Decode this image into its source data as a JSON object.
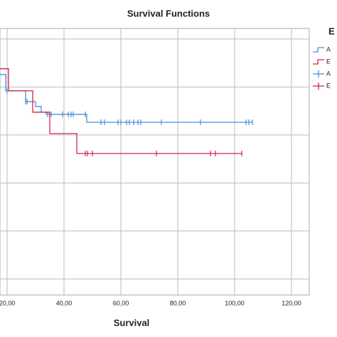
{
  "chart_data": {
    "type": "survival-step",
    "title": "Survival Functions",
    "x_label": "Survival",
    "legend_title": "E",
    "xlim": [
      0,
      126.25
    ],
    "ylim": [
      -0.067,
      1.044
    ],
    "xticks": [
      {
        "value": 20,
        "label": "20,00"
      },
      {
        "value": 40,
        "label": "40,00"
      },
      {
        "value": 60,
        "label": "60,00"
      },
      {
        "value": 80,
        "label": "80,00"
      },
      {
        "value": 100,
        "label": "100,00"
      },
      {
        "value": 120,
        "label": "120,00"
      }
    ],
    "yticks": [
      0,
      0.2,
      0.4,
      0.6,
      0.8,
      1.0
    ],
    "grid": true,
    "series": [
      {
        "name": "A",
        "color": "#4a90d9",
        "time": [
          17.5,
          19.5,
          26.5,
          30,
          32,
          33.75,
          48
        ],
        "survival": [
          0.852,
          0.784,
          0.739,
          0.719,
          0.695,
          0.686,
          0.653
        ],
        "censored": [
          20,
          26.5,
          27,
          34.25,
          35.5,
          39.5,
          41.5,
          42.5,
          43.25,
          47.5,
          53,
          54.25,
          59,
          60,
          62,
          63,
          64.5,
          66,
          67,
          74.25,
          88,
          104,
          105,
          106.25
        ]
      },
      {
        "name": "E",
        "color": "#d6204f",
        "time": [
          17.5,
          20.5,
          29,
          35,
          44.5
        ],
        "survival": [
          0.876,
          0.784,
          0.695,
          0.606,
          0.523
        ],
        "censored": [
          47.5,
          48.25,
          50,
          72.5,
          91.5,
          93.25,
          102.5
        ]
      }
    ]
  }
}
